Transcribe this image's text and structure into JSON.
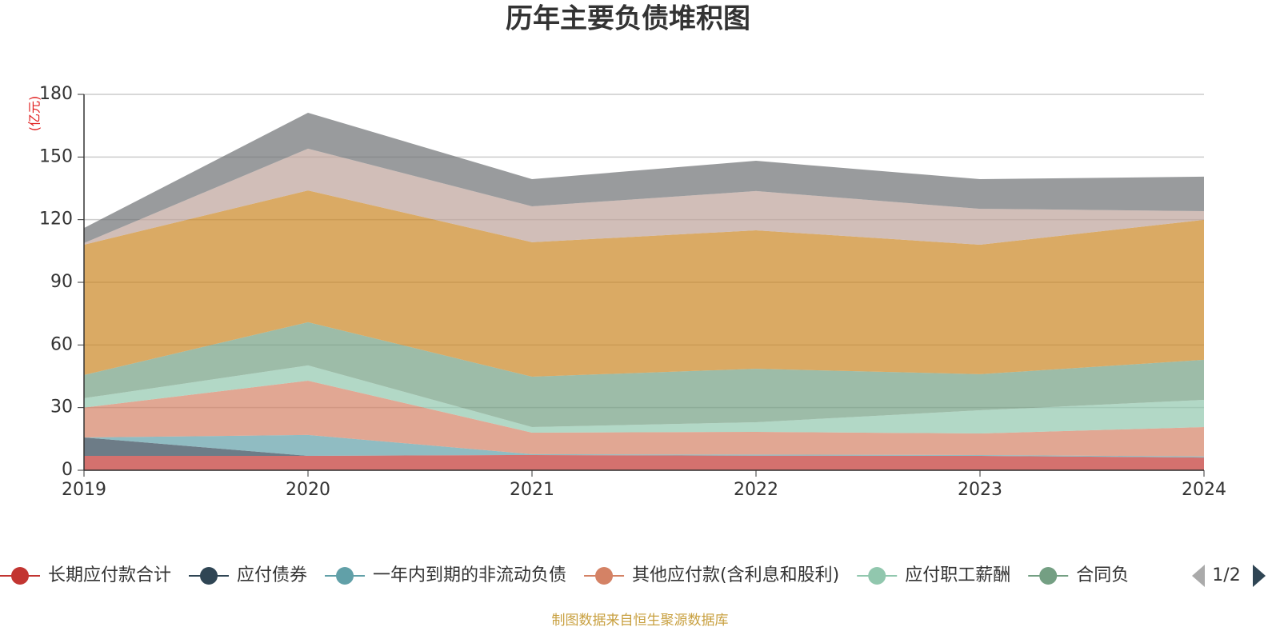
{
  "chart_data": {
    "type": "stacked-area",
    "title": "历年主要负债堆积图",
    "y_unit": "(亿元)",
    "x": [
      "2019",
      "2020",
      "2021",
      "2022",
      "2023",
      "2024"
    ],
    "series": [
      {
        "name": "长期应付款合计",
        "color": "#c23531",
        "values": [
          6.9,
          6.9,
          7.3,
          7.0,
          6.9,
          6.1
        ]
      },
      {
        "name": "应付债券",
        "color": "#2f4554",
        "values": [
          8.8,
          0,
          0,
          0,
          0,
          0
        ]
      },
      {
        "name": "一年内到期的非流动负债",
        "color": "#61a0a8",
        "values": [
          0,
          10,
          0.4,
          0.5,
          0.4,
          0.5
        ]
      },
      {
        "name": "其他应付款(含利息和股利)",
        "color": "#d48265",
        "values": [
          14.3,
          26,
          10.3,
          10.9,
          10.3,
          14.1
        ]
      },
      {
        "name": "应付职工薪酬",
        "color": "#91c7ae",
        "values": [
          4.5,
          7.3,
          2.7,
          4.6,
          11.1,
          13
        ]
      },
      {
        "name": "合同负",
        "color": "#749f83",
        "values": [
          11.1,
          20.7,
          24.1,
          25.6,
          17.3,
          19.2
        ]
      },
      {
        "color": "#ca8622",
        "values": [
          62.4,
          63.1,
          64.4,
          66.3,
          62,
          67
        ]
      },
      {
        "color": "#bda29a",
        "values": [
          0.8,
          20,
          17.2,
          18.8,
          17.2,
          4.2
        ]
      },
      {
        "color": "#6e7074",
        "values": [
          7.2,
          17.2,
          13,
          14.5,
          14.2,
          16.5
        ]
      }
    ],
    "ylim": [
      0,
      180
    ],
    "yticks": [
      0,
      30,
      60,
      90,
      120,
      150,
      180
    ],
    "grid": true,
    "legend_page": "1/2",
    "source": "制图数据来自恒生聚源数据库"
  }
}
